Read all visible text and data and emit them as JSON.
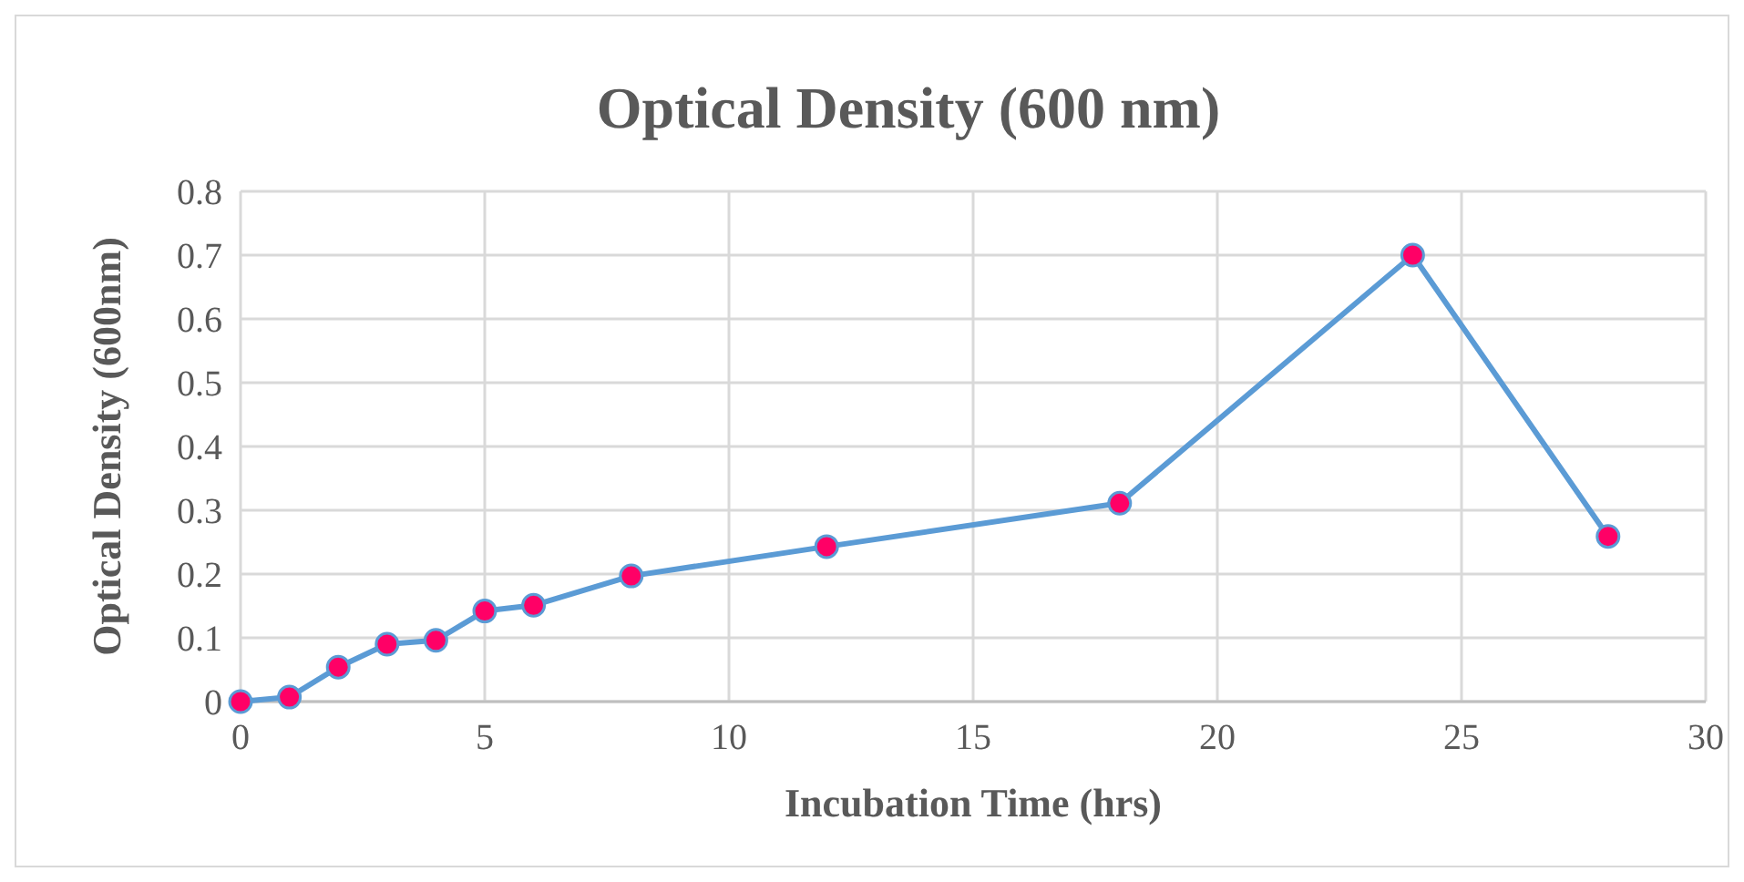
{
  "chart_data": {
    "type": "line",
    "title": "Optical Density (600 nm)",
    "xlabel": "Incubation Time (hrs)",
    "ylabel": "Optical Density (600nm)",
    "x": [
      0,
      1,
      2,
      3,
      4,
      5,
      6,
      8,
      12,
      18,
      24,
      28
    ],
    "series": [
      {
        "color": "#5b9bd5",
        "values": [
          0,
          0.007,
          0.054,
          0.09,
          0.096,
          0.142,
          0.151,
          0.197,
          0.243,
          0.311,
          0.7,
          0.259
        ]
      }
    ],
    "xlim": [
      0,
      30
    ],
    "xticks": [
      0,
      5,
      10,
      15,
      20,
      25,
      30
    ],
    "ylim": [
      0,
      0.8
    ],
    "yticks": [
      0,
      0.1,
      0.2,
      0.3,
      0.4,
      0.5,
      0.6,
      0.7,
      0.8
    ],
    "grid": true,
    "marker": "circle",
    "line_style": "solid"
  }
}
